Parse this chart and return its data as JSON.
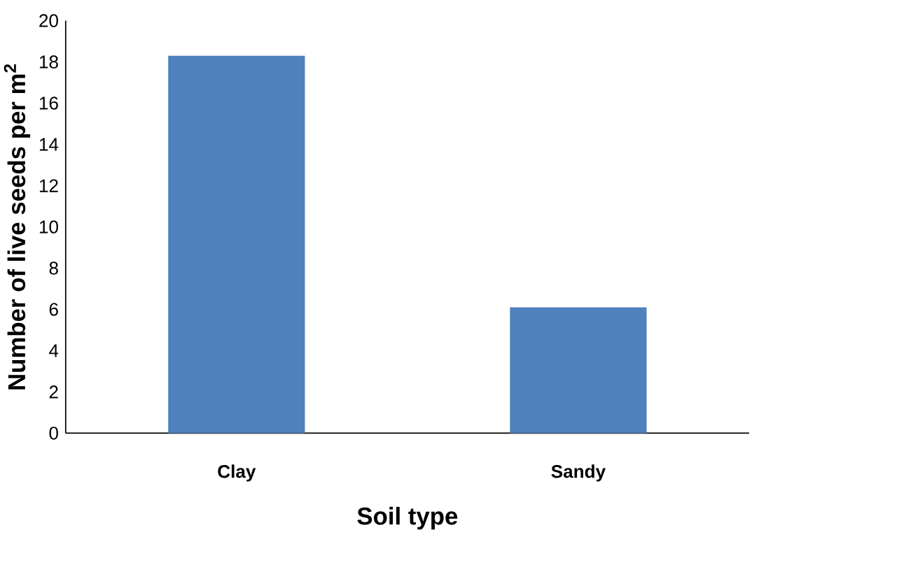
{
  "chart_data": {
    "type": "bar",
    "xlabel": "Soil type",
    "ylabel": "Number of live seeds per m$^{2}$",
    "categories": [
      "Clay",
      "Sandy"
    ],
    "values": [
      18.3,
      6.1
    ],
    "color": "#4f81bd",
    "ylim": [
      0,
      20
    ],
    "yticks": [
      0,
      2,
      4,
      6,
      8,
      10,
      12,
      14,
      16,
      18,
      20
    ]
  }
}
